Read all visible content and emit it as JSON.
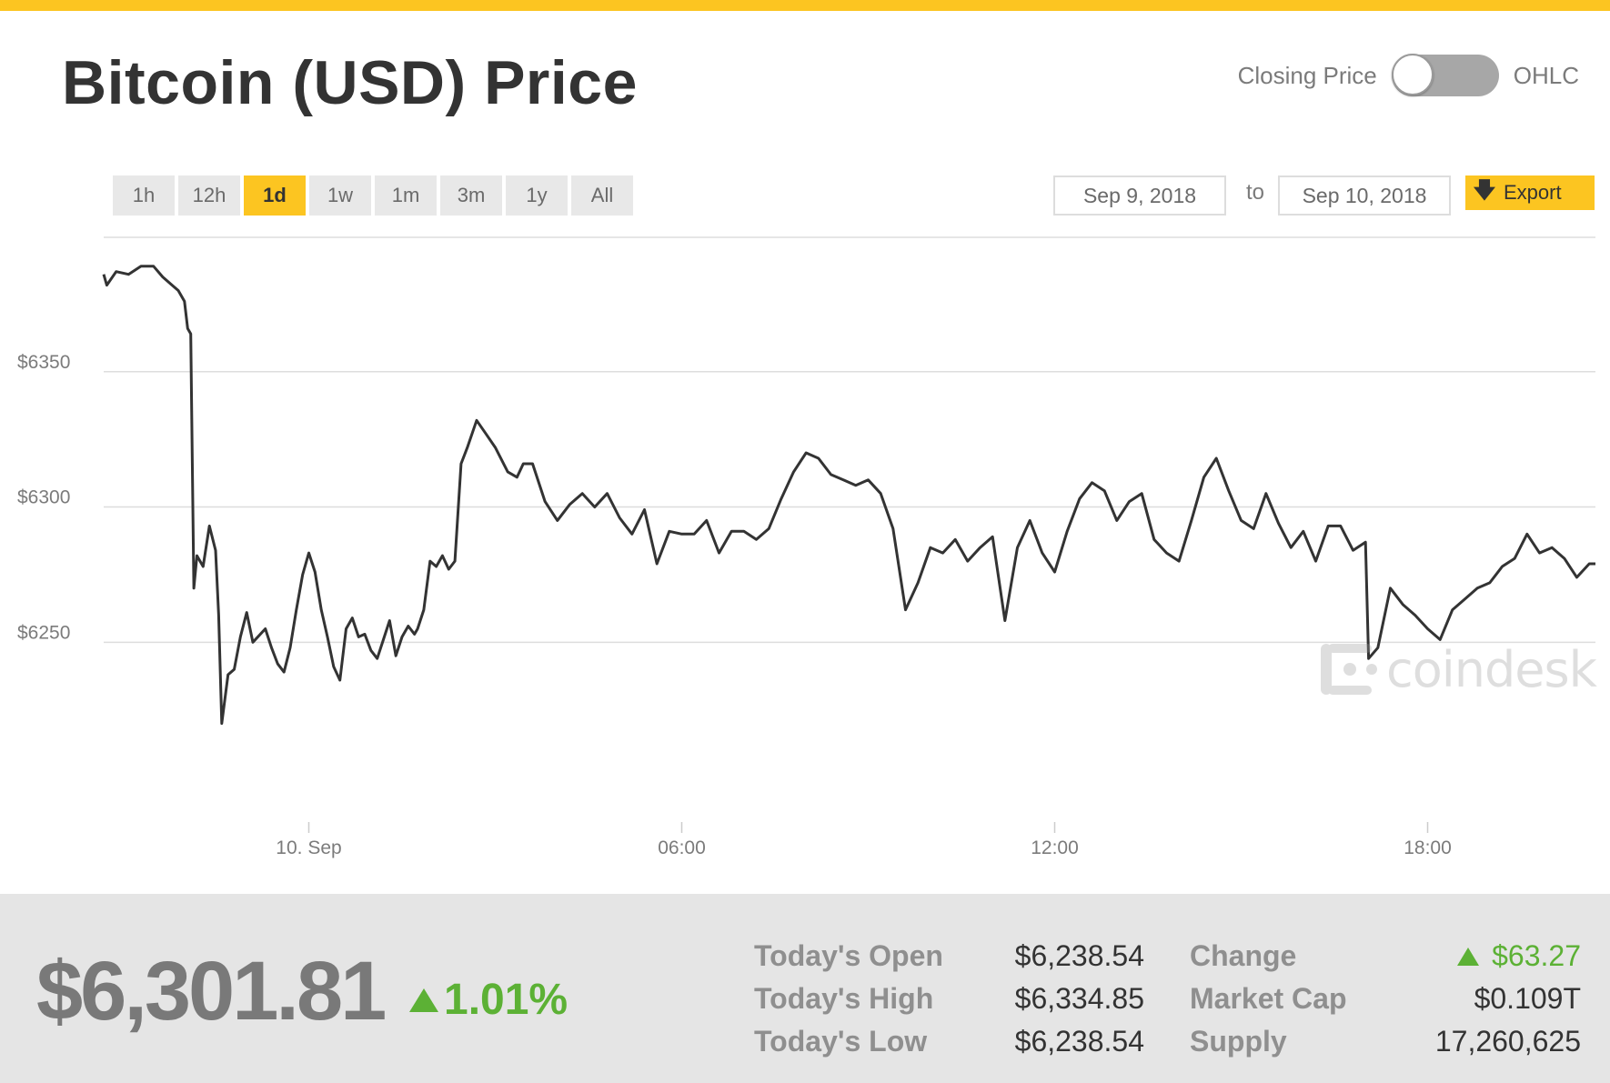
{
  "header": {
    "title": "Bitcoin (USD) Price",
    "toggle_left_label": "Closing Price",
    "toggle_right_label": "OHLC"
  },
  "ranges": [
    "1h",
    "12h",
    "1d",
    "1w",
    "1m",
    "3m",
    "1y",
    "All"
  ],
  "active_range": "1d",
  "dates": {
    "from": "Sep 9, 2018",
    "separator": "to",
    "to": "Sep 10, 2018"
  },
  "export_label": "Export",
  "watermark": {
    "text": "coindesk"
  },
  "colors": {
    "accent": "#fcc521",
    "line": "#333333",
    "positive": "#5cb135",
    "grid": "#dddddd"
  },
  "chart_data": {
    "type": "line",
    "title": "",
    "xlabel": "",
    "ylabel": "",
    "x_ticks": [
      "10. Sep",
      "06:00",
      "12:00",
      "18:00"
    ],
    "x_tick_hours": [
      0,
      6,
      12,
      18
    ],
    "y_ticks": [
      6250,
      6300,
      6350
    ],
    "y_tick_labels": [
      "$6250",
      "$6300",
      "$6350"
    ],
    "ylim": [
      6195,
      6400
    ],
    "xlim_hours": [
      -3.3,
      20.7
    ],
    "grid": true,
    "series": [
      {
        "x_hours": [
          -3.3,
          -3.25,
          -3.1,
          -2.9,
          -2.7,
          -2.5,
          -2.35,
          -2.2,
          -2.1,
          -2.0,
          -1.95,
          -1.9,
          -1.85,
          -1.8,
          -1.7,
          -1.6,
          -1.5,
          -1.45,
          -1.4,
          -1.3,
          -1.2,
          -1.1,
          -1.0,
          -0.9,
          -0.7,
          -0.6,
          -0.5,
          -0.4,
          -0.3,
          -0.2,
          -0.1,
          0.0,
          0.1,
          0.2,
          0.3,
          0.4,
          0.5,
          0.6,
          0.7,
          0.8,
          0.9,
          1.0,
          1.1,
          1.2,
          1.3,
          1.4,
          1.5,
          1.6,
          1.7,
          1.75,
          1.85,
          1.95,
          2.05,
          2.15,
          2.25,
          2.35,
          2.45,
          2.55,
          2.7,
          2.85,
          3.0,
          3.2,
          3.35,
          3.45,
          3.6,
          3.8,
          4.0,
          4.2,
          4.4,
          4.6,
          4.8,
          5.0,
          5.2,
          5.4,
          5.6,
          5.8,
          6.0,
          6.2,
          6.4,
          6.6,
          6.8,
          7.0,
          7.2,
          7.4,
          7.6,
          7.8,
          8.0,
          8.2,
          8.4,
          8.6,
          8.8,
          9.0,
          9.2,
          9.4,
          9.6,
          9.8,
          10.0,
          10.2,
          10.4,
          10.6,
          10.8,
          11.0,
          11.2,
          11.4,
          11.6,
          11.8,
          12.0,
          12.2,
          12.4,
          12.6,
          12.8,
          13.0,
          13.2,
          13.4,
          13.6,
          13.8,
          14.0,
          14.2,
          14.4,
          14.6,
          14.8,
          15.0,
          15.2,
          15.4,
          15.6,
          15.8,
          16.0,
          16.2,
          16.4,
          16.6,
          16.8,
          17.0,
          17.05,
          17.2,
          17.4,
          17.6,
          17.8,
          18.0,
          18.2,
          18.4,
          18.6,
          18.8,
          19.0,
          19.2,
          19.4,
          19.6,
          19.8,
          20.0,
          20.2,
          20.4,
          20.6,
          20.7
        ],
        "y": [
          6386,
          6382,
          6387,
          6386,
          6389,
          6389,
          6385,
          6382,
          6380,
          6376,
          6366,
          6364,
          6270,
          6282,
          6278,
          6293,
          6284,
          6260,
          6220,
          6238,
          6240,
          6252,
          6261,
          6250,
          6255,
          6248,
          6242,
          6239,
          6248,
          6262,
          6275,
          6283,
          6276,
          6262,
          6252,
          6241,
          6236,
          6255,
          6259,
          6252,
          6253,
          6247,
          6244,
          6251,
          6258,
          6245,
          6252,
          6256,
          6253,
          6255,
          6262,
          6280,
          6278,
          6282,
          6277,
          6280,
          6316,
          6322,
          6332,
          6327,
          6322,
          6313,
          6311,
          6316,
          6316,
          6302,
          6295,
          6301,
          6305,
          6300,
          6305,
          6296,
          6290,
          6299,
          6279,
          6291,
          6290,
          6290,
          6295,
          6283,
          6291,
          6291,
          6288,
          6292,
          6303,
          6313,
          6320,
          6318,
          6312,
          6310,
          6308,
          6310,
          6305,
          6292,
          6262,
          6272,
          6285,
          6283,
          6288,
          6280,
          6285,
          6289,
          6258,
          6285,
          6295,
          6283,
          6276,
          6291,
          6303,
          6309,
          6306,
          6295,
          6302,
          6305,
          6288,
          6283,
          6280,
          6295,
          6311,
          6318,
          6306,
          6295,
          6292,
          6305,
          6294,
          6285,
          6291,
          6280,
          6293,
          6293,
          6284,
          6287,
          6244,
          6248,
          6270,
          6264,
          6260,
          6255,
          6251,
          6262,
          6266,
          6270,
          6272,
          6278,
          6281,
          6290,
          6283,
          6285,
          6281,
          6274,
          6279,
          6279
        ]
      }
    ]
  },
  "summary": {
    "price": "$6,301.81",
    "change_pct": "1.01%",
    "stats": {
      "open_label": "Today's Open",
      "open_value": "$6,238.54",
      "high_label": "Today's High",
      "high_value": "$6,334.85",
      "low_label": "Today's Low",
      "low_value": "$6,238.54",
      "change_label": "Change",
      "change_value": "$63.27",
      "mcap_label": "Market Cap",
      "mcap_value": "$0.109T",
      "supply_label": "Supply",
      "supply_value": "17,260,625"
    }
  }
}
